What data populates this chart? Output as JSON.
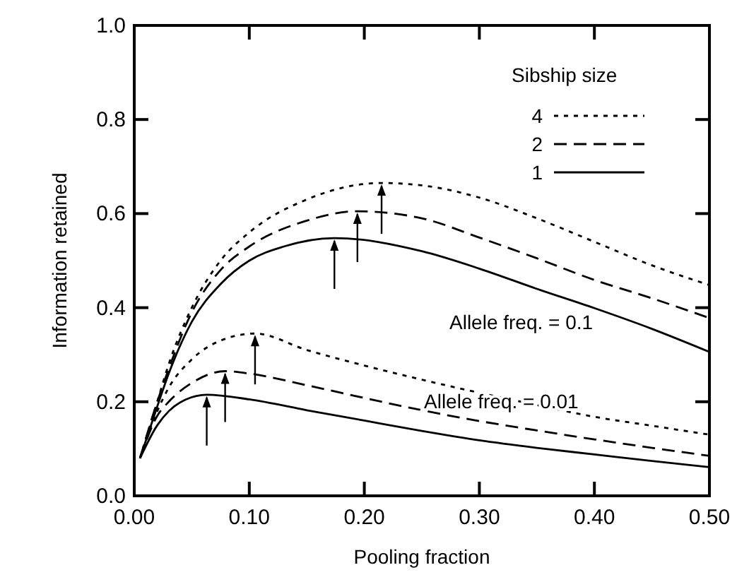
{
  "chart_data": {
    "type": "line",
    "xlabel": "Pooling fraction",
    "ylabel": "Information retained",
    "legend_title": "Sibship size",
    "legend": "top right",
    "grid": false,
    "marker": "none",
    "xlim": [
      0,
      0.5
    ],
    "ylim": [
      0,
      1
    ],
    "xticks": [
      {
        "value": 0,
        "label": "0.00"
      },
      {
        "value": 0.1,
        "label": "0.10"
      },
      {
        "value": 0.2,
        "label": "0.20"
      },
      {
        "value": 0.3,
        "label": "0.30"
      },
      {
        "value": 0.4,
        "label": "0.40"
      },
      {
        "value": 0.5,
        "label": "0.50"
      }
    ],
    "yticks": [
      {
        "value": 0,
        "label": "0.0"
      },
      {
        "value": 0.2,
        "label": "0.2"
      },
      {
        "value": 0.4,
        "label": "0.4"
      },
      {
        "value": 0.6,
        "label": "0.6"
      },
      {
        "value": 0.8,
        "label": "0.8"
      },
      {
        "value": 1,
        "label": "1.0"
      }
    ],
    "series": [
      {
        "name": "4",
        "color": "#000000",
        "line_style": "dotted",
        "x": [
          0.005,
          0.02,
          0.03,
          0.05,
          0.075,
          0.1,
          0.15,
          0.215,
          0.25,
          0.3,
          0.35,
          0.4,
          0.45,
          0.5
        ],
        "values": [
          0.08,
          0.2,
          0.28,
          0.4,
          0.5,
          0.56,
          0.63,
          0.665,
          0.66,
          0.634,
          0.59,
          0.54,
          0.49,
          0.448
        ]
      },
      {
        "name": "2",
        "color": "#000000",
        "line_style": "dashed",
        "x": [
          0.005,
          0.02,
          0.03,
          0.05,
          0.075,
          0.1,
          0.15,
          0.194,
          0.25,
          0.3,
          0.35,
          0.4,
          0.45,
          0.5
        ],
        "values": [
          0.08,
          0.2,
          0.27,
          0.39,
          0.48,
          0.53,
          0.585,
          0.605,
          0.59,
          0.549,
          0.505,
          0.459,
          0.42,
          0.378
        ]
      },
      {
        "name": "1",
        "color": "#000000",
        "line_style": "solid",
        "x": [
          0.005,
          0.02,
          0.03,
          0.05,
          0.075,
          0.1,
          0.13,
          0.174,
          0.25,
          0.3,
          0.35,
          0.4,
          0.45,
          0.5
        ],
        "values": [
          0.08,
          0.19,
          0.26,
          0.37,
          0.45,
          0.5,
          0.53,
          0.548,
          0.52,
          0.483,
          0.44,
          0.399,
          0.355,
          0.306
        ]
      },
      {
        "color": "#000000",
        "line_style": "dotted",
        "x": [
          0.005,
          0.02,
          0.03,
          0.05,
          0.075,
          0.105,
          0.15,
          0.2,
          0.25,
          0.3,
          0.35,
          0.4,
          0.45,
          0.5
        ],
        "values": [
          0.08,
          0.18,
          0.23,
          0.29,
          0.33,
          0.345,
          0.31,
          0.277,
          0.247,
          0.219,
          0.193,
          0.168,
          0.149,
          0.13
        ]
      },
      {
        "color": "#000000",
        "line_style": "dashed",
        "x": [
          0.005,
          0.02,
          0.03,
          0.05,
          0.079,
          0.1,
          0.15,
          0.2,
          0.25,
          0.3,
          0.35,
          0.4,
          0.45,
          0.5
        ],
        "values": [
          0.08,
          0.17,
          0.2,
          0.24,
          0.265,
          0.26,
          0.235,
          0.208,
          0.182,
          0.159,
          0.139,
          0.12,
          0.102,
          0.085
        ]
      },
      {
        "color": "#000000",
        "line_style": "solid",
        "x": [
          0.005,
          0.02,
          0.03,
          0.045,
          0.063,
          0.1,
          0.15,
          0.2,
          0.25,
          0.3,
          0.35,
          0.4,
          0.45,
          0.5
        ],
        "values": [
          0.08,
          0.15,
          0.18,
          0.205,
          0.215,
          0.205,
          0.182,
          0.16,
          0.138,
          0.118,
          0.102,
          0.088,
          0.074,
          0.061
        ]
      }
    ],
    "annotations": [
      "Allele freq. = 0.1",
      "Allele freq. = 0.01"
    ]
  }
}
